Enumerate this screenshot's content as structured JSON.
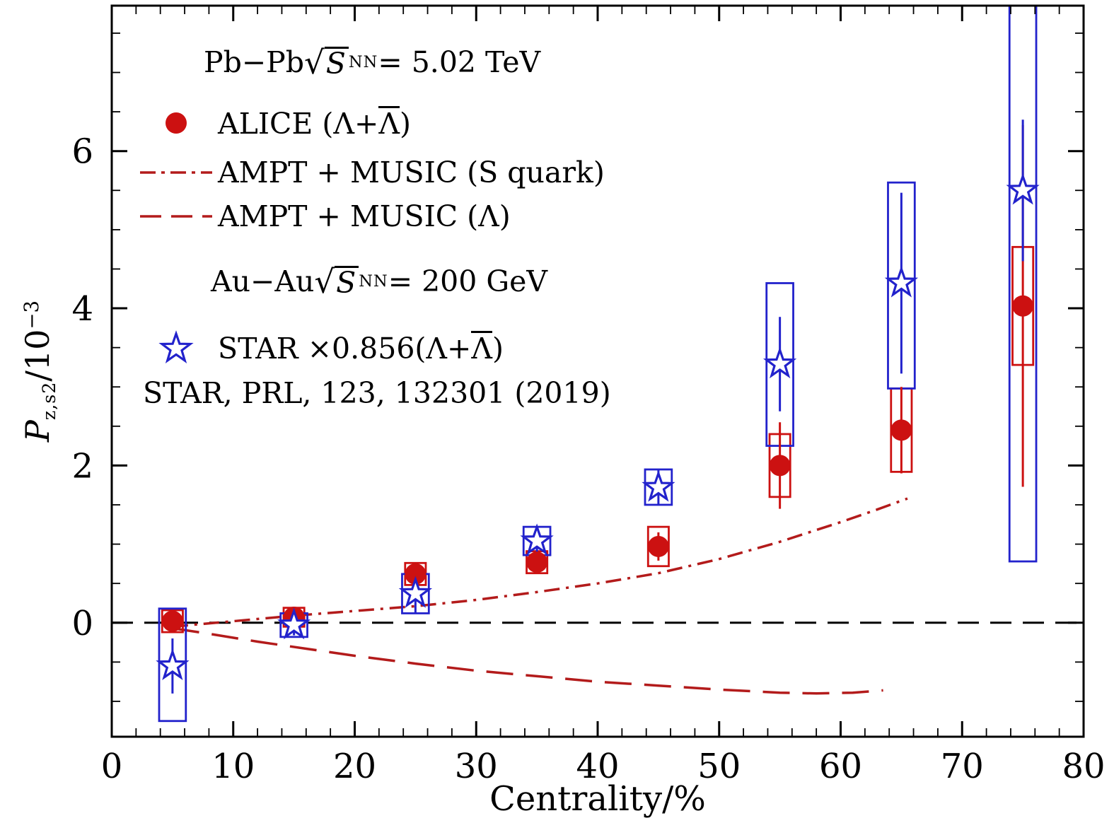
{
  "colors": {
    "red_marker": "#cc1111",
    "red_curve": "#b31b1b",
    "blue_marker": "#2222cc",
    "frame": "#000000"
  },
  "legend": {
    "pbpb": {
      "prefix": "Pb−Pb",
      "radical": "√",
      "radicand": "S",
      "sub": "NN",
      "suffix": " = 5.02 TeV"
    },
    "alice": {
      "pre": "ALICE (Λ+",
      "bar": "Λ",
      "post": ")"
    },
    "ampt_s": {
      "label": "AMPT + MUSIC (S quark)"
    },
    "ampt_l": {
      "label": "AMPT + MUSIC (Λ)"
    },
    "auau": {
      "prefix": "Au−Au",
      "radical": "√",
      "radicand": "S",
      "sub": "NN",
      "suffix": " = 200 GeV"
    },
    "star": {
      "pre": "STAR ×0.856(Λ+",
      "bar": "Λ",
      "post": ")"
    },
    "ref": {
      "label": "STAR, PRL, 123, 132301 (2019)"
    }
  },
  "axes": {
    "xlabel": "Centrality/%",
    "ylabel": {
      "base": "P",
      "sub": "z,s2",
      "mid": "/10",
      "sup": "−3"
    },
    "xticks_labels": [
      "0",
      "10",
      "20",
      "30",
      "40",
      "50",
      "60",
      "70",
      "80"
    ],
    "yticks_labels": [
      "0",
      "2",
      "4",
      "6"
    ]
  },
  "chart_data": {
    "type": "scatter",
    "title": "Pb−Pb sqrt(S_NN) = 5.02 TeV and Au−Au sqrt(S_NN) = 200 GeV",
    "xlabel": "Centrality/%",
    "ylabel": "P_z,s2 / 10^-3",
    "xlim": [
      0,
      80
    ],
    "ylim": [
      -1.45,
      7.85
    ],
    "xticks": [
      0,
      10,
      20,
      30,
      40,
      50,
      60,
      70,
      80
    ],
    "yticks": [
      0,
      2,
      4,
      6
    ],
    "x_minor_step": 2,
    "y_minor_step": 0.5,
    "zero_line_y": 0,
    "grid": false,
    "legend_position": "upper left",
    "series": [
      {
        "name": "ALICE (Λ+Λ̄), Pb−Pb 5.02 TeV",
        "marker": "circle",
        "color": "#cc1111",
        "box_halfwidth_x": 0.85,
        "points": [
          {
            "x": 5,
            "y": 0.02,
            "stat": 0.1,
            "box": [
              -0.12,
              0.16
            ]
          },
          {
            "x": 15,
            "y": 0.07,
            "stat": 0.1,
            "box": [
              -0.05,
              0.19
            ]
          },
          {
            "x": 25,
            "y": 0.62,
            "stat": 0.12,
            "box": [
              0.48,
              0.76
            ]
          },
          {
            "x": 35,
            "y": 0.77,
            "stat": 0.12,
            "box": [
              0.63,
              0.91
            ]
          },
          {
            "x": 45,
            "y": 0.97,
            "stat": 0.18,
            "box": [
              0.72,
              1.22
            ]
          },
          {
            "x": 55,
            "y": 2.0,
            "stat": 0.55,
            "box": [
              1.6,
              2.4
            ]
          },
          {
            "x": 65,
            "y": 2.45,
            "stat": 0.55,
            "box": [
              1.92,
              2.98
            ]
          },
          {
            "x": 75,
            "y": 4.03,
            "stat": 2.3,
            "box": [
              3.28,
              4.78
            ]
          }
        ]
      },
      {
        "name": "STAR ×0.856 (Λ+Λ̄), Au−Au 200 GeV",
        "marker": "star",
        "color": "#2222cc",
        "box_halfwidth_x": 1.1,
        "points": [
          {
            "x": 5,
            "y": -0.55,
            "stat": 0.35,
            "box": [
              -1.25,
              0.18
            ]
          },
          {
            "x": 15,
            "y": -0.03,
            "stat": 0.13,
            "box": [
              -0.18,
              0.12
            ]
          },
          {
            "x": 25,
            "y": 0.37,
            "stat": 0.25,
            "box": [
              0.12,
              0.62
            ]
          },
          {
            "x": 35,
            "y": 1.04,
            "stat": 0.16,
            "box": [
              0.86,
              1.22
            ]
          },
          {
            "x": 45,
            "y": 1.72,
            "stat": 0.22,
            "box": [
              1.5,
              1.95
            ]
          },
          {
            "x": 55,
            "y": 3.29,
            "stat": 0.6,
            "box": [
              2.25,
              4.32
            ]
          },
          {
            "x": 65,
            "y": 4.32,
            "stat": 1.15,
            "box": [
              2.98,
              5.6
            ]
          },
          {
            "x": 75,
            "y": 5.5,
            "stat": 0.9,
            "box": [
              0.78,
              8.4
            ]
          }
        ]
      }
    ],
    "curves": [
      {
        "name": "AMPT + MUSIC (S quark)",
        "style": "dashdot",
        "color": "#b31b1b",
        "x": [
          5,
          10,
          15,
          20,
          25,
          30,
          35,
          40,
          45,
          50,
          55,
          60,
          63,
          65.5
        ],
        "y": [
          -0.05,
          0.02,
          0.09,
          0.15,
          0.21,
          0.29,
          0.39,
          0.5,
          0.63,
          0.81,
          1.03,
          1.28,
          1.44,
          1.58
        ]
      },
      {
        "name": "AMPT + MUSIC (Λ)",
        "style": "dashed",
        "color": "#b31b1b",
        "x": [
          5,
          8,
          12,
          16,
          20,
          25,
          30,
          35,
          40,
          45,
          50,
          55,
          58,
          61,
          63.5
        ],
        "y": [
          -0.07,
          -0.14,
          -0.24,
          -0.33,
          -0.42,
          -0.52,
          -0.61,
          -0.68,
          -0.75,
          -0.8,
          -0.85,
          -0.89,
          -0.9,
          -0.89,
          -0.86
        ]
      }
    ]
  }
}
